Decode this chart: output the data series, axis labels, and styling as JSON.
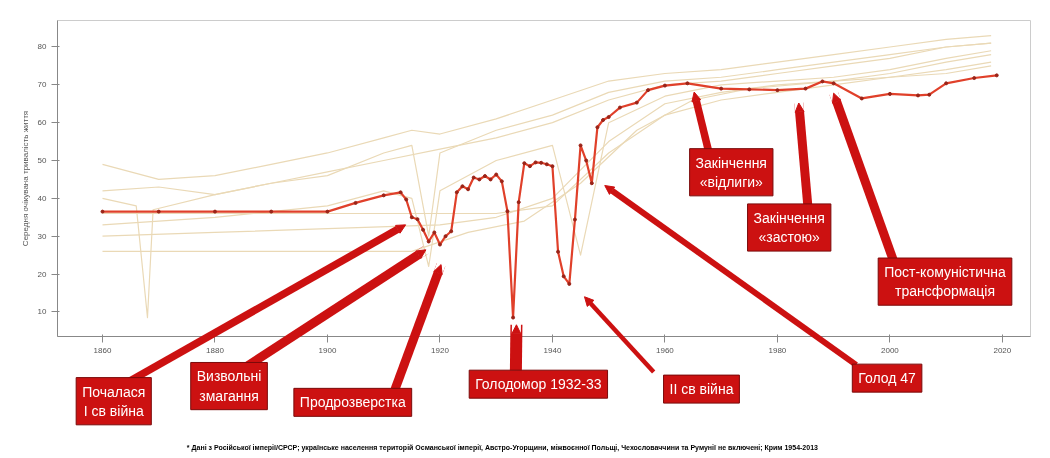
{
  "chart_data": {
    "type": "line",
    "ylabel": "Середня очікувана тривалість життя",
    "xlim": [
      1852,
      2025
    ],
    "ylim": [
      3.5,
      87
    ],
    "xticks": [
      1860,
      1880,
      1900,
      1920,
      1940,
      1960,
      1980,
      2000,
      2020
    ],
    "yticks": [
      10,
      20,
      30,
      40,
      50,
      60,
      70,
      80
    ],
    "grid": false,
    "line_style": "solid",
    "series": [
      {
        "color": "#ead9b6",
        "marker": "none",
        "x": [
          1860,
          1870,
          1880,
          1890,
          1900,
          1910,
          1915,
          1920,
          1930,
          1940,
          1950,
          1960,
          1970,
          1980,
          1990,
          2000,
          2010,
          2018
        ],
        "values": [
          49,
          45,
          46,
          49,
          52,
          56,
          58,
          57,
          61,
          66,
          71,
          73,
          74,
          76,
          78,
          80,
          82,
          83
        ]
      },
      {
        "color": "#ead9b6",
        "marker": "none",
        "x": [
          1860,
          1870,
          1880,
          1890,
          1900,
          1910,
          1915,
          1918,
          1920,
          1930,
          1940,
          1950,
          1960,
          1970,
          1980,
          1990,
          2000,
          2010,
          2018
        ],
        "values": [
          42,
          43,
          41,
          44,
          46,
          52,
          54,
          30,
          52,
          58,
          62,
          68,
          71,
          72,
          74,
          76,
          78,
          80,
          81
        ]
      },
      {
        "color": "#ead9b6",
        "marker": "none",
        "x": [
          1860,
          1866,
          1868,
          1869,
          1880,
          1890,
          1900,
          1910,
          1920,
          1930,
          1940,
          1950,
          1960,
          1970,
          1980,
          1990,
          2000,
          2010,
          2018
        ],
        "values": [
          40,
          38,
          8.5,
          37,
          41,
          44,
          47,
          50,
          53,
          56,
          60,
          66,
          70,
          71,
          73,
          75,
          77,
          80,
          81
        ]
      },
      {
        "color": "#ead9b6",
        "marker": "none",
        "x": [
          1860,
          1880,
          1900,
          1910,
          1915,
          1918,
          1920,
          1930,
          1940,
          1945,
          1950,
          1960,
          1970,
          1980,
          1990,
          2000,
          2010,
          2018
        ],
        "values": [
          33,
          35,
          38,
          42,
          40,
          22,
          42,
          50,
          54,
          25,
          60,
          67,
          70,
          71,
          72,
          74,
          77,
          79
        ]
      },
      {
        "color": "#ead9b6",
        "marker": "none",
        "x": [
          1860,
          1880,
          1900,
          1920,
          1930,
          1940,
          1950,
          1960,
          1970,
          1980,
          1990,
          2000,
          2010,
          2018
        ],
        "values": [
          30,
          31,
          32,
          33,
          35,
          40,
          55,
          65,
          68,
          70,
          71,
          73,
          76,
          78
        ]
      },
      {
        "color": "#ead9b6",
        "marker": "none",
        "x": [
          1860,
          1880,
          1900,
          1920,
          1930,
          1940,
          1950,
          1960,
          1970,
          1980,
          1990,
          2000,
          2010,
          2018
        ],
        "values": [
          36,
          36,
          36,
          36,
          36,
          38,
          52,
          62,
          66,
          68,
          70,
          72,
          74,
          76
        ]
      },
      {
        "color": "#ead9b6",
        "marker": "none",
        "x": [
          1860,
          1880,
          1900,
          1915,
          1925,
          1935,
          1945,
          1955,
          1965,
          1975,
          1990,
          2000,
          2010,
          2018
        ],
        "values": [
          26,
          26,
          26,
          26,
          31,
          34,
          44,
          58,
          66,
          69,
          71,
          72,
          73,
          75
        ]
      },
      {
        "color": "#e0402a",
        "marker": "circle",
        "x": [
          1860,
          1870,
          1880,
          1890,
          1900,
          1905,
          1910,
          1913,
          1914,
          1915,
          1916,
          1917,
          1918,
          1919,
          1920,
          1921,
          1922,
          1923,
          1924,
          1925,
          1926,
          1927,
          1928,
          1929,
          1930,
          1931,
          1932,
          1933,
          1934,
          1935,
          1936,
          1937,
          1938,
          1939,
          1940,
          1941,
          1942,
          1943,
          1944,
          1945,
          1946,
          1947,
          1948,
          1949,
          1950,
          1952,
          1955,
          1957,
          1960,
          1964,
          1970,
          1975,
          1980,
          1985,
          1988,
          1990,
          1995,
          2000,
          2005,
          2007,
          2010,
          2015,
          2019
        ],
        "values": [
          36.5,
          36.5,
          36.5,
          36.5,
          36.5,
          38.8,
          40.8,
          41.6,
          39.7,
          35,
          34.5,
          31.7,
          28.6,
          31,
          27.8,
          30,
          31.3,
          41.6,
          43.2,
          42.4,
          45.5,
          45,
          45.9,
          45,
          46.3,
          44.5,
          36.6,
          8.5,
          39,
          49.3,
          48.5,
          49.5,
          49.4,
          49,
          48.5,
          25.9,
          19.4,
          17.4,
          34.4,
          54,
          50,
          44,
          58.8,
          60.7,
          61.5,
          64,
          65.3,
          68.6,
          69.8,
          70.4,
          69,
          68.8,
          68.6,
          69,
          70.9,
          70.4,
          66.4,
          67.6,
          67.2,
          67.4,
          70.4,
          71.8,
          72.5
        ]
      }
    ],
    "annotations": [
      "Почалася\nІ св війна",
      "Визвольні\nзмагання",
      "Продрозверстка",
      "Голодомор 1932-33",
      "ІІ св війна",
      "Голод 47",
      "Закінчення\n«відлиги»",
      "Закінчення\n«застою»",
      "Пост-комуністична\nтрансформація",
      "* Дані з Російської імперії/СРСР; українське населення територій Османської імперії, Австро-Угорщини, міжвоєнної Польщі, Чехословаччини та Румунії не включені; Крим 1954-2013"
    ]
  }
}
